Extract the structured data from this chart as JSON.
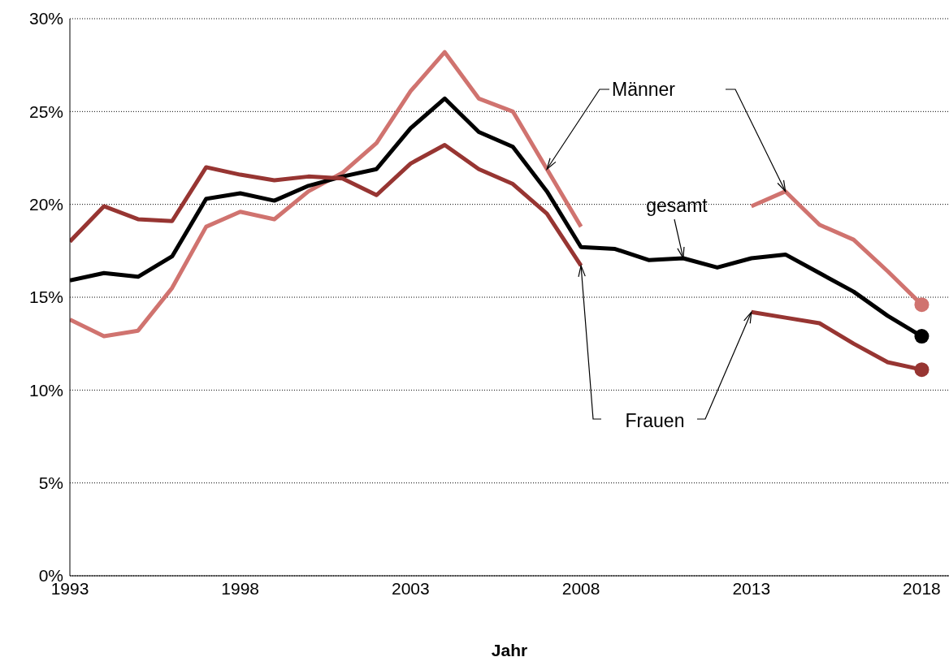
{
  "chart_data": {
    "type": "line",
    "xlabel": "Jahr",
    "x": [
      1993,
      1994,
      1995,
      1996,
      1997,
      1998,
      1999,
      2000,
      2001,
      2002,
      2003,
      2004,
      2005,
      2006,
      2007,
      2008,
      2009,
      2010,
      2011,
      2012,
      2013,
      2014,
      2015,
      2016,
      2017,
      2018
    ],
    "series": [
      {
        "name": "Männer",
        "color": "#d0736f",
        "values": [
          13.8,
          12.9,
          13.2,
          15.5,
          18.8,
          19.6,
          19.2,
          20.7,
          21.7,
          23.3,
          26.1,
          28.2,
          25.7,
          25.0,
          21.9,
          18.8,
          null,
          null,
          null,
          null,
          19.9,
          20.7,
          18.9,
          18.1,
          16.4,
          14.6
        ]
      },
      {
        "name": "gesamt",
        "color": "#000000",
        "values": [
          15.9,
          16.3,
          16.1,
          17.2,
          20.3,
          20.6,
          20.2,
          21.0,
          21.5,
          21.9,
          24.1,
          25.7,
          23.9,
          23.1,
          20.7,
          17.7,
          17.6,
          17.0,
          17.1,
          16.6,
          17.1,
          17.3,
          16.3,
          15.3,
          14.0,
          12.9
        ]
      },
      {
        "name": "Frauen",
        "color": "#973532",
        "values": [
          18.0,
          19.9,
          19.2,
          19.1,
          22.0,
          21.6,
          21.3,
          21.5,
          21.4,
          20.5,
          22.2,
          23.2,
          21.9,
          21.1,
          19.5,
          16.7,
          null,
          null,
          null,
          null,
          14.2,
          13.9,
          13.6,
          12.5,
          11.5,
          11.1
        ]
      }
    ],
    "xlim": [
      1993,
      2018.8
    ],
    "xticks": [
      1993,
      1998,
      2003,
      2008,
      2013,
      2018
    ],
    "ylim": [
      0,
      30
    ],
    "yticks": [
      {
        "value": 0,
        "label": "0%"
      },
      {
        "value": 5,
        "label": "5%"
      },
      {
        "value": 10,
        "label": "10%"
      },
      {
        "value": 15,
        "label": "15%"
      },
      {
        "value": 20,
        "label": "20%"
      },
      {
        "value": 25,
        "label": "25%"
      },
      {
        "value": 30,
        "label": "30%"
      }
    ],
    "grid": "y"
  }
}
